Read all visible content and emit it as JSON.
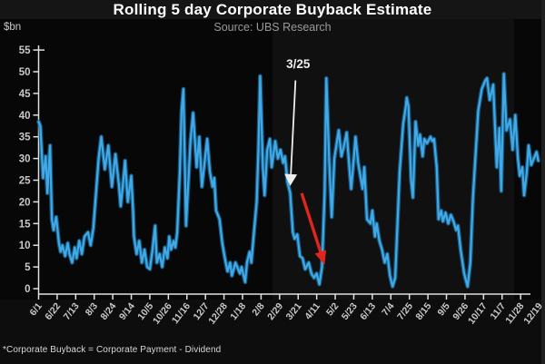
{
  "header": {
    "title": "Rolling 5 day Corporate Buyback Estimate",
    "subtitle": "Source: UBS Research"
  },
  "axes": {
    "unit_label": "$bn"
  },
  "footer": {
    "note": "*Corporate Buyback = Corporate Payment - Dividend"
  },
  "colors": {
    "background": "#070707",
    "line": "#41A9E6",
    "line_glow": "#18628F",
    "axis": "#E0E0E0",
    "tick_label": "#C9C9C9",
    "title": "#FFFFFF",
    "subtitle": "#9A9A9A",
    "callout_white": "#EEEEEE",
    "arrow_red": "#E0261C"
  },
  "chart_data": {
    "type": "line",
    "title": "Rolling 5 day Corporate Buyback Estimate",
    "xlabel": "",
    "ylabel": "$bn",
    "ylim": [
      0,
      55
    ],
    "grid": false,
    "legend": "none",
    "y_ticks": [
      0,
      5,
      10,
      15,
      20,
      25,
      30,
      35,
      40,
      45,
      50,
      55
    ],
    "x_tick_labels": [
      "6/1",
      "6/22",
      "7/13",
      "8/3",
      "8/24",
      "9/14",
      "10/5",
      "10/26",
      "11/16",
      "12/7",
      "12/28",
      "1/18",
      "2/8",
      "2/29",
      "3/21",
      "4/11",
      "5/2",
      "5/23",
      "6/13",
      "7/4",
      "7/25",
      "8/15",
      "9/5",
      "9/26",
      "10/17",
      "11/7",
      "11/28",
      "12/19"
    ],
    "x_tick_interval_days": 21,
    "series": [
      {
        "name": "Rolling 5 day corporate buyback estimate ($bn)",
        "color": "#41A9E6",
        "points": [
          [
            0,
            38.5
          ],
          [
            2,
            37.5
          ],
          [
            5,
            25.5
          ],
          [
            8,
            30.5
          ],
          [
            10,
            22
          ],
          [
            13,
            33
          ],
          [
            15,
            16
          ],
          [
            17,
            13.5
          ],
          [
            20,
            16.5
          ],
          [
            23,
            10.5
          ],
          [
            25,
            8.5
          ],
          [
            27,
            10
          ],
          [
            30,
            7.5
          ],
          [
            33,
            10.5
          ],
          [
            35,
            8
          ],
          [
            38,
            6
          ],
          [
            41,
            9.5
          ],
          [
            43,
            7
          ],
          [
            46,
            11
          ],
          [
            49,
            8
          ],
          [
            52,
            12
          ],
          [
            56,
            13
          ],
          [
            59,
            10
          ],
          [
            62,
            14
          ],
          [
            65,
            22
          ],
          [
            68,
            30
          ],
          [
            71,
            35
          ],
          [
            75,
            27.5
          ],
          [
            79,
            33
          ],
          [
            83,
            23.5
          ],
          [
            87,
            31
          ],
          [
            91,
            24
          ],
          [
            93,
            19
          ],
          [
            96,
            25
          ],
          [
            98,
            29.5
          ],
          [
            101,
            20
          ],
          [
            103,
            23
          ],
          [
            105,
            26
          ],
          [
            107,
            18
          ],
          [
            108,
            12
          ],
          [
            111,
            8
          ],
          [
            114,
            11
          ],
          [
            117,
            6
          ],
          [
            120,
            9
          ],
          [
            123,
            5
          ],
          [
            126,
            4.5
          ],
          [
            129,
            9
          ],
          [
            132,
            14.5
          ],
          [
            134,
            6
          ],
          [
            137,
            8
          ],
          [
            140,
            5
          ],
          [
            143,
            9.5
          ],
          [
            146,
            7
          ],
          [
            148,
            12
          ],
          [
            150,
            9
          ],
          [
            153,
            11
          ],
          [
            155,
            9.5
          ],
          [
            157,
            13
          ],
          [
            160,
            27
          ],
          [
            162,
            41
          ],
          [
            164,
            46
          ],
          [
            167,
            14.5
          ],
          [
            170,
            26
          ],
          [
            172,
            34
          ],
          [
            175,
            40.5
          ],
          [
            179,
            28
          ],
          [
            182,
            35
          ],
          [
            185,
            23.5
          ],
          [
            188,
            29
          ],
          [
            191,
            34.5
          ],
          [
            194,
            27
          ],
          [
            197,
            23.5
          ],
          [
            199,
            25.5
          ],
          [
            201,
            18
          ],
          [
            205,
            16
          ],
          [
            208,
            10.5
          ],
          [
            211,
            7
          ],
          [
            214,
            4
          ],
          [
            217,
            6
          ],
          [
            219,
            3
          ],
          [
            221,
            4.5
          ],
          [
            223,
            6
          ],
          [
            225,
            5
          ],
          [
            228,
            3.5
          ],
          [
            230,
            5
          ],
          [
            234,
            1.5
          ],
          [
            236,
            6
          ],
          [
            239,
            8.5
          ],
          [
            241,
            6
          ],
          [
            244,
            13
          ],
          [
            247,
            20
          ],
          [
            249,
            32
          ],
          [
            251,
            49
          ],
          [
            254,
            28
          ],
          [
            256,
            21.5
          ],
          [
            259,
            32
          ],
          [
            262,
            34.5
          ],
          [
            264,
            28
          ],
          [
            268,
            34
          ],
          [
            271,
            30
          ],
          [
            274,
            32
          ],
          [
            277,
            29
          ],
          [
            279,
            30.5
          ],
          [
            282,
            24.5
          ],
          [
            285,
            22
          ],
          [
            288,
            13
          ],
          [
            290,
            11.5
          ],
          [
            293,
            12.5
          ],
          [
            296,
            7.5
          ],
          [
            299,
            7
          ],
          [
            302,
            4.5
          ],
          [
            306,
            6
          ],
          [
            309,
            3.5
          ],
          [
            312,
            2.5
          ],
          [
            315,
            3.5
          ],
          [
            318,
            1
          ],
          [
            321,
            5
          ],
          [
            324,
            22
          ],
          [
            326,
            48.5
          ],
          [
            329,
            30
          ],
          [
            332,
            16.5
          ],
          [
            335,
            30
          ],
          [
            340,
            36.5
          ],
          [
            343,
            30.5
          ],
          [
            346,
            33
          ],
          [
            349,
            36
          ],
          [
            352,
            28
          ],
          [
            354,
            23
          ],
          [
            357,
            30
          ],
          [
            359,
            35
          ],
          [
            362,
            29
          ],
          [
            364,
            26.5
          ],
          [
            367,
            23
          ],
          [
            369,
            28
          ],
          [
            372,
            16
          ],
          [
            376,
            15
          ],
          [
            378,
            18
          ],
          [
            381,
            12
          ],
          [
            383,
            15
          ],
          [
            386,
            11
          ],
          [
            389,
            9
          ],
          [
            392,
            6
          ],
          [
            395,
            8
          ],
          [
            398,
            3
          ],
          [
            401,
            0.5
          ],
          [
            404,
            2.5
          ],
          [
            409,
            27
          ],
          [
            413,
            38
          ],
          [
            416,
            42
          ],
          [
            417,
            44
          ],
          [
            419,
            42
          ],
          [
            422,
            25
          ],
          [
            424,
            21
          ],
          [
            427,
            38.5
          ],
          [
            430,
            33
          ],
          [
            432,
            35.5
          ],
          [
            435,
            30.5
          ],
          [
            437,
            34.5
          ],
          [
            440,
            33.5
          ],
          [
            444,
            35
          ],
          [
            446,
            34
          ],
          [
            448,
            34.5
          ],
          [
            451,
            28
          ],
          [
            453,
            16
          ],
          [
            456,
            18
          ],
          [
            458,
            15.5
          ],
          [
            461,
            17.5
          ],
          [
            464,
            15
          ],
          [
            467,
            17
          ],
          [
            470,
            15.5
          ],
          [
            473,
            13.5
          ],
          [
            475,
            14.5
          ],
          [
            478,
            9
          ],
          [
            482,
            3.5
          ],
          [
            486,
            0.5
          ],
          [
            489,
            6
          ],
          [
            492,
            21
          ],
          [
            495,
            31
          ],
          [
            498,
            41
          ],
          [
            502,
            46
          ],
          [
            506,
            48
          ],
          [
            508,
            48.5
          ],
          [
            511,
            43.5
          ],
          [
            515,
            47
          ],
          [
            519,
            28
          ],
          [
            522,
            37
          ],
          [
            524,
            22.5
          ],
          [
            527,
            49.5
          ],
          [
            530,
            36.5
          ],
          [
            534,
            39
          ],
          [
            537,
            32
          ],
          [
            540,
            40
          ],
          [
            543,
            30
          ],
          [
            545,
            26
          ],
          [
            548,
            28
          ],
          [
            550,
            21.5
          ],
          [
            553,
            27
          ],
          [
            555,
            33
          ],
          [
            558,
            28.5
          ],
          [
            561,
            30
          ],
          [
            564,
            31.5
          ],
          [
            566,
            29.5
          ]
        ]
      }
    ],
    "annotations": {
      "callout": {
        "label": "3/25",
        "label_day": 294,
        "label_value": 50.8,
        "line_from_day": 291,
        "line_from_value": 48,
        "head_day": 285,
        "head_value": 24.5
      },
      "red_arrow": {
        "from_day": 298,
        "from_value": 22,
        "to_day": 324,
        "to_value": 5.5
      }
    }
  }
}
